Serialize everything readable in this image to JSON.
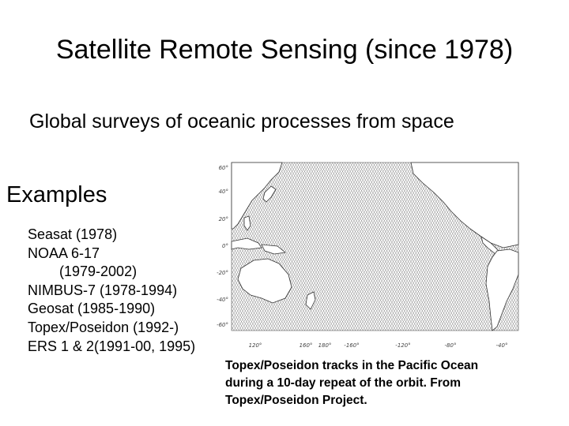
{
  "slide": {
    "title": "Satellite Remote Sensing (since 1978)",
    "subtitle": "Global surveys of oceanic processes from space",
    "examples_heading": "Examples",
    "examples": [
      "Seasat (1978)",
      "NOAA 6-17",
      "(1979-2002)",
      "NIMBUS-7 (1978-1994)",
      "Geosat (1985-1990)",
      "Topex/Poseidon (1992-)",
      "ERS 1 & 2(1991-00, 1995)"
    ]
  },
  "map": {
    "lat_ticks": [
      "60°",
      "40°",
      "20°",
      "0°",
      "-20°",
      "-40°",
      "-60°"
    ],
    "lon_ticks": [
      "120°",
      "160°",
      "180°",
      "-160°",
      "-120°",
      "-80°",
      "-40°"
    ]
  },
  "caption": {
    "line1": "Topex/Poseidon tracks in the Pacific Ocean",
    "line2": "during a 10-day repeat of the orbit. From",
    "line3": "Topex/Poseidon Project."
  }
}
